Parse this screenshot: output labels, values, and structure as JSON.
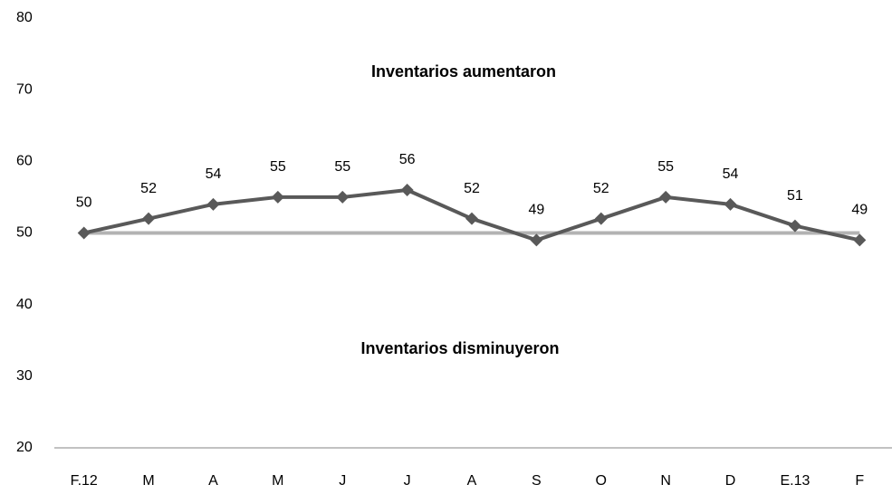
{
  "chart_data": {
    "type": "line",
    "annotations": [
      "Inventarios aumentaron",
      "Inventarios disminuyeron"
    ],
    "categories": [
      "F.12",
      "M",
      "A",
      "M",
      "J",
      "J",
      "A",
      "S",
      "O",
      "N",
      "D",
      "E.13",
      "F"
    ],
    "series": [
      {
        "color": "#595959",
        "values": [
          50,
          52,
          54,
          55,
          55,
          56,
          52,
          49,
          52,
          55,
          54,
          51,
          49
        ]
      }
    ],
    "reference_line": {
      "value": 50,
      "color": "#b3b3b3"
    },
    "ylim": [
      20,
      80
    ],
    "yticks": [
      20,
      30,
      40,
      50,
      60,
      70,
      80
    ],
    "grid": false
  }
}
